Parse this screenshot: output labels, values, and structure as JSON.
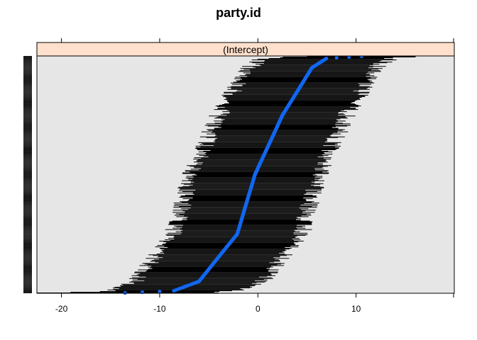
{
  "chart_data": {
    "type": "caterpillar (dotplot with intervals)",
    "title": "party.id",
    "panel_strip": "(Intercept)",
    "xlim": [
      -22.5,
      20.0
    ],
    "x_ticks": [
      -20,
      -10,
      0,
      10
    ],
    "x_tick_labels": [
      "-20",
      "-10",
      "0",
      "10"
    ],
    "n_levels": 330,
    "point_color": "#1167f1",
    "interval_color": "#000000",
    "strip_color": "#ffe0cc",
    "panel_bg_color": "#e6e6e6",
    "estimates_quantiles": {
      "min": -14.4,
      "q01": -8.6,
      "q05": -6.0,
      "q25": -2.1,
      "median": -0.3,
      "q75": 2.5,
      "q95": 5.5,
      "q99": 7.0,
      "max": 11.2
    },
    "interval_halfwidth_approx": 6.5,
    "grid": true,
    "legend": "none"
  }
}
